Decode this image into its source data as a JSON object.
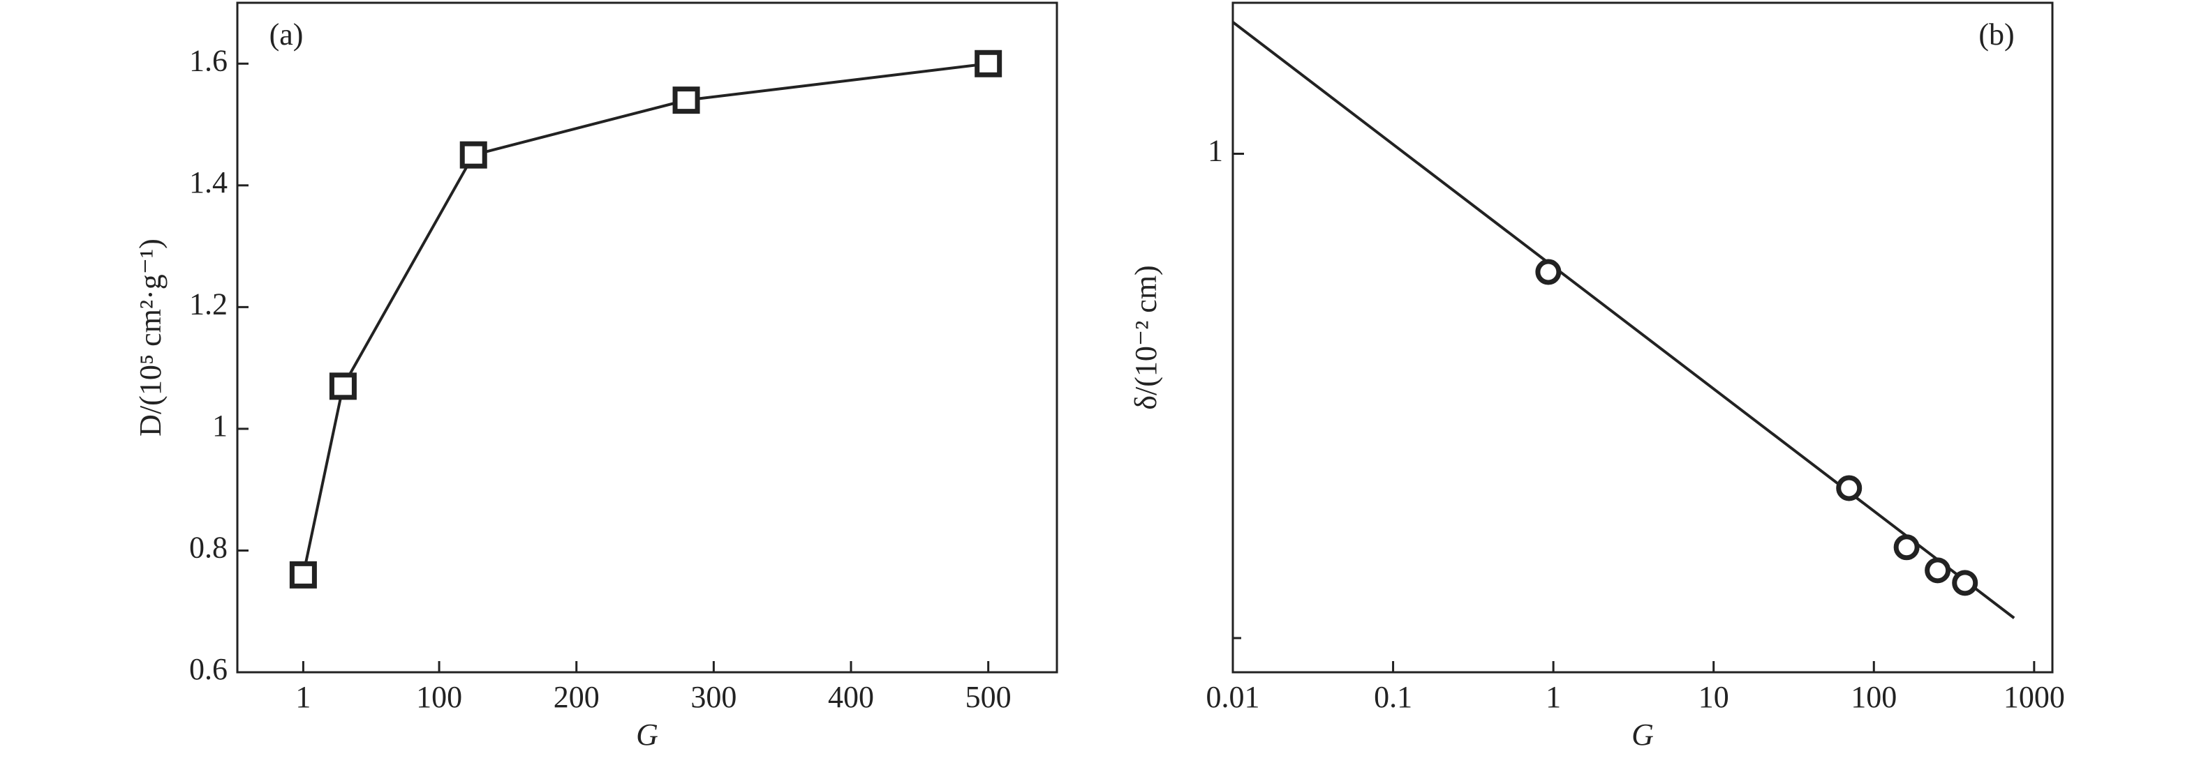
{
  "chart_data": [
    {
      "type": "line",
      "panel_label": "(a)",
      "x_label": "G",
      "y_label": "D/(10⁵ cm²·g⁻¹)",
      "xlim": [
        -47,
        550
      ],
      "xticks": [
        1,
        100,
        200,
        300,
        400,
        500
      ],
      "ylim": [
        0.6,
        1.7
      ],
      "yticks": [
        0.6,
        0.8,
        1.0,
        1.2,
        1.4,
        1.6
      ],
      "series": [
        {
          "color": "#222222",
          "marker": "square",
          "line": true,
          "x": [
            1,
            30,
            125,
            280,
            500
          ],
          "values": [
            0.76,
            1.07,
            1.45,
            1.54,
            1.6
          ]
        }
      ]
    },
    {
      "type": "line",
      "panel_label": "(b)",
      "x_label": "G",
      "y_label": "δ/(10⁻² cm)",
      "xscale": "log",
      "yscale": "log",
      "xlim": [
        0.01,
        1300
      ],
      "xticks": [
        0.01,
        0.1,
        1,
        10,
        100,
        1000
      ],
      "ylim": [
        0.085,
        2.05
      ],
      "yticks": [
        1
      ],
      "yticks_minor": [
        0.1
      ],
      "series": [
        {
          "color": "#222222",
          "line": true,
          "x": [
            0.01,
            750
          ],
          "values": [
            1.87,
            0.11
          ]
        },
        {
          "color": "#222222",
          "marker": "circle",
          "line": false,
          "x": [
            0.93,
            70,
            160,
            250,
            370
          ],
          "values": [
            0.57,
            0.204,
            0.154,
            0.138,
            0.13
          ]
        }
      ]
    }
  ]
}
